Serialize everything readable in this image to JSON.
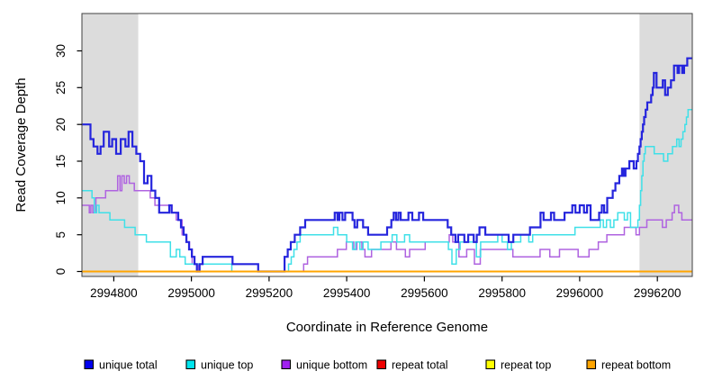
{
  "figure": {
    "type_hint": "R base graphics step plot of sequencing read coverage",
    "background": "#ffffff"
  },
  "chart_data": {
    "type": "line",
    "subtype": "step",
    "title": "",
    "xlabel": "Coordinate in Reference Genome",
    "ylabel": "Read Coverage Depth",
    "x_range": [
      2994718,
      2996290
    ],
    "y_range": [
      0,
      30
    ],
    "x_ticks": [
      2994800,
      2995000,
      2995200,
      2995400,
      2995600,
      2995800,
      2996000,
      2996200
    ],
    "y_ticks": [
      0,
      5,
      10,
      15,
      20,
      25,
      30
    ],
    "grid": false,
    "frame_color": "#404040",
    "shaded_bands": [
      {
        "name": "left-repeat-region",
        "x0": 2994718,
        "x1": 2994863,
        "color": "#dcdcdc"
      },
      {
        "name": "right-repeat-region",
        "x0": 2996154,
        "x1": 2996290,
        "color": "#dcdcdc"
      }
    ],
    "legend_position": "bottom",
    "legend": [
      {
        "label": "unique total",
        "fill": "#0000f0"
      },
      {
        "label": "unique top",
        "fill": "#00e5ee"
      },
      {
        "label": "unique bottom",
        "fill": "#a020f0"
      },
      {
        "label": "repeat total",
        "fill": "#ee0000"
      },
      {
        "label": "repeat top",
        "fill": "#ffff00"
      },
      {
        "label": "repeat bottom",
        "fill": "#ffa500"
      }
    ],
    "series": [
      {
        "name": "unique bottom",
        "color": "#af63e0",
        "width": 1.5,
        "steps": [
          [
            2994718,
            9
          ],
          [
            2994737,
            8
          ],
          [
            2994741,
            9
          ],
          [
            2994746,
            8
          ],
          [
            2994754,
            10
          ],
          [
            2994779,
            11
          ],
          [
            2994810,
            13
          ],
          [
            2994816,
            11
          ],
          [
            2994821,
            13
          ],
          [
            2994827,
            12
          ],
          [
            2994833,
            13
          ],
          [
            2994840,
            12
          ],
          [
            2994853,
            11
          ],
          [
            2994894,
            10
          ],
          [
            2994906,
            9
          ],
          [
            2994950,
            8
          ],
          [
            2994961,
            7
          ],
          [
            2994976,
            5
          ],
          [
            2994988,
            4
          ],
          [
            2994995,
            3
          ],
          [
            2995002,
            1
          ],
          [
            2995018,
            0
          ],
          [
            2995289,
            1
          ],
          [
            2995299,
            2
          ],
          [
            2995376,
            3
          ],
          [
            2995399,
            4
          ],
          [
            2995418,
            3
          ],
          [
            2995426,
            4
          ],
          [
            2995439,
            3
          ],
          [
            2995447,
            2
          ],
          [
            2995464,
            3
          ],
          [
            2995514,
            4
          ],
          [
            2995528,
            3
          ],
          [
            2995551,
            2
          ],
          [
            2995562,
            3
          ],
          [
            2995602,
            4
          ],
          [
            2995664,
            5
          ],
          [
            2995673,
            4
          ],
          [
            2995689,
            2
          ],
          [
            2995709,
            3
          ],
          [
            2995729,
            1
          ],
          [
            2995744,
            3
          ],
          [
            2995828,
            2
          ],
          [
            2995898,
            3
          ],
          [
            2995923,
            2
          ],
          [
            2995948,
            3
          ],
          [
            2995996,
            2
          ],
          [
            2996024,
            3
          ],
          [
            2996048,
            4
          ],
          [
            2996070,
            5
          ],
          [
            2996115,
            6
          ],
          [
            2996145,
            5
          ],
          [
            2996154,
            6
          ],
          [
            2996173,
            7
          ],
          [
            2996213,
            6
          ],
          [
            2996223,
            7
          ],
          [
            2996238,
            8
          ],
          [
            2996244,
            9
          ],
          [
            2996255,
            8
          ],
          [
            2996263,
            7
          ]
        ]
      },
      {
        "name": "unique top",
        "color": "#3fe0e8",
        "width": 1.5,
        "steps": [
          [
            2994718,
            11
          ],
          [
            2994744,
            10
          ],
          [
            2994750,
            8
          ],
          [
            2994756,
            9
          ],
          [
            2994762,
            8
          ],
          [
            2994790,
            7
          ],
          [
            2994828,
            6
          ],
          [
            2994855,
            5
          ],
          [
            2994884,
            4
          ],
          [
            2994946,
            2
          ],
          [
            2994961,
            3
          ],
          [
            2994970,
            2
          ],
          [
            2994984,
            1
          ],
          [
            2995104,
            0
          ],
          [
            2995250,
            1
          ],
          [
            2995257,
            2
          ],
          [
            2995264,
            3
          ],
          [
            2995272,
            4
          ],
          [
            2995280,
            5
          ],
          [
            2995366,
            6
          ],
          [
            2995377,
            5
          ],
          [
            2995400,
            4
          ],
          [
            2995415,
            3
          ],
          [
            2995423,
            4
          ],
          [
            2995434,
            3
          ],
          [
            2995442,
            4
          ],
          [
            2995455,
            3
          ],
          [
            2995488,
            4
          ],
          [
            2995517,
            5
          ],
          [
            2995529,
            4
          ],
          [
            2995549,
            5
          ],
          [
            2995562,
            4
          ],
          [
            2995662,
            3
          ],
          [
            2995671,
            1
          ],
          [
            2995682,
            3
          ],
          [
            2995692,
            4
          ],
          [
            2995734,
            2
          ],
          [
            2995745,
            4
          ],
          [
            2995789,
            5
          ],
          [
            2995800,
            4
          ],
          [
            2995814,
            3
          ],
          [
            2995824,
            4
          ],
          [
            2995848,
            5
          ],
          [
            2995869,
            4
          ],
          [
            2995879,
            5
          ],
          [
            2995988,
            6
          ],
          [
            2996053,
            7
          ],
          [
            2996061,
            6
          ],
          [
            2996069,
            7
          ],
          [
            2996079,
            6
          ],
          [
            2996088,
            7
          ],
          [
            2996098,
            8
          ],
          [
            2996115,
            7
          ],
          [
            2996123,
            8
          ],
          [
            2996131,
            6
          ],
          [
            2996150,
            7
          ],
          [
            2996154,
            9
          ],
          [
            2996157,
            11
          ],
          [
            2996160,
            13
          ],
          [
            2996163,
            15
          ],
          [
            2996166,
            16
          ],
          [
            2996169,
            17
          ],
          [
            2996192,
            16
          ],
          [
            2996216,
            15
          ],
          [
            2996227,
            16
          ],
          [
            2996239,
            17
          ],
          [
            2996250,
            18
          ],
          [
            2996256,
            17
          ],
          [
            2996261,
            18
          ],
          [
            2996266,
            19
          ],
          [
            2996271,
            20
          ],
          [
            2996275,
            21
          ],
          [
            2996279,
            22
          ]
        ]
      },
      {
        "name": "unique total",
        "color": "#2525dd",
        "width": 2.2,
        "steps": [
          [
            2994718,
            20
          ],
          [
            2994740,
            18
          ],
          [
            2994748,
            17
          ],
          [
            2994758,
            16
          ],
          [
            2994766,
            17
          ],
          [
            2994774,
            19
          ],
          [
            2994788,
            17
          ],
          [
            2994796,
            18
          ],
          [
            2994806,
            16
          ],
          [
            2994818,
            18
          ],
          [
            2994830,
            17
          ],
          [
            2994838,
            19
          ],
          [
            2994848,
            17
          ],
          [
            2994858,
            16
          ],
          [
            2994868,
            15
          ],
          [
            2994878,
            12
          ],
          [
            2994887,
            13
          ],
          [
            2994897,
            11
          ],
          [
            2994907,
            10
          ],
          [
            2994917,
            8
          ],
          [
            2994943,
            9
          ],
          [
            2994949,
            8
          ],
          [
            2994966,
            7
          ],
          [
            2994973,
            6
          ],
          [
            2994980,
            5
          ],
          [
            2994987,
            4
          ],
          [
            2994994,
            3
          ],
          [
            2995001,
            2
          ],
          [
            2995008,
            1
          ],
          [
            2995014,
            0
          ],
          [
            2995021,
            1
          ],
          [
            2995029,
            2
          ],
          [
            2995106,
            1
          ],
          [
            2995172,
            0
          ],
          [
            2995240,
            2
          ],
          [
            2995248,
            3
          ],
          [
            2995256,
            4
          ],
          [
            2995266,
            5
          ],
          [
            2995280,
            6
          ],
          [
            2995293,
            7
          ],
          [
            2995369,
            8
          ],
          [
            2995376,
            7
          ],
          [
            2995381,
            8
          ],
          [
            2995389,
            7
          ],
          [
            2995396,
            8
          ],
          [
            2995415,
            7
          ],
          [
            2995420,
            6
          ],
          [
            2995427,
            7
          ],
          [
            2995442,
            6
          ],
          [
            2995455,
            5
          ],
          [
            2995504,
            6
          ],
          [
            2995515,
            7
          ],
          [
            2995521,
            8
          ],
          [
            2995527,
            7
          ],
          [
            2995533,
            8
          ],
          [
            2995539,
            7
          ],
          [
            2995559,
            8
          ],
          [
            2995569,
            7
          ],
          [
            2995586,
            8
          ],
          [
            2995597,
            7
          ],
          [
            2995660,
            6
          ],
          [
            2995669,
            5
          ],
          [
            2995680,
            4
          ],
          [
            2995687,
            5
          ],
          [
            2995703,
            4
          ],
          [
            2995713,
            5
          ],
          [
            2995727,
            4
          ],
          [
            2995735,
            5
          ],
          [
            2995742,
            6
          ],
          [
            2995757,
            5
          ],
          [
            2995817,
            4
          ],
          [
            2995829,
            5
          ],
          [
            2995872,
            6
          ],
          [
            2995899,
            8
          ],
          [
            2995907,
            7
          ],
          [
            2995926,
            8
          ],
          [
            2995934,
            7
          ],
          [
            2995961,
            8
          ],
          [
            2995981,
            9
          ],
          [
            2995989,
            8
          ],
          [
            2996000,
            9
          ],
          [
            2996011,
            8
          ],
          [
            2996019,
            9
          ],
          [
            2996028,
            7
          ],
          [
            2996050,
            8
          ],
          [
            2996057,
            9
          ],
          [
            2996063,
            8
          ],
          [
            2996071,
            10
          ],
          [
            2996085,
            11
          ],
          [
            2996092,
            12
          ],
          [
            2996102,
            13
          ],
          [
            2996109,
            14
          ],
          [
            2996114,
            13
          ],
          [
            2996118,
            14
          ],
          [
            2996128,
            15
          ],
          [
            2996139,
            14
          ],
          [
            2996146,
            15
          ],
          [
            2996150,
            16
          ],
          [
            2996154,
            17
          ],
          [
            2996157,
            18
          ],
          [
            2996160,
            19
          ],
          [
            2996163,
            20
          ],
          [
            2996166,
            21
          ],
          [
            2996170,
            22
          ],
          [
            2996174,
            23
          ],
          [
            2996184,
            24
          ],
          [
            2996188,
            25
          ],
          [
            2996191,
            27
          ],
          [
            2996198,
            25
          ],
          [
            2996214,
            26
          ],
          [
            2996220,
            24
          ],
          [
            2996227,
            25
          ],
          [
            2996235,
            26
          ],
          [
            2996243,
            28
          ],
          [
            2996252,
            27
          ],
          [
            2996256,
            28
          ],
          [
            2996264,
            27
          ],
          [
            2996269,
            28
          ],
          [
            2996277,
            29
          ]
        ]
      },
      {
        "name": "repeat total",
        "color": "#ee0000",
        "width": 1.4,
        "steps": [
          [
            2994718,
            0
          ]
        ]
      },
      {
        "name": "repeat top",
        "color": "#ffff00",
        "width": 1.4,
        "steps": [
          [
            2994718,
            0
          ]
        ]
      },
      {
        "name": "repeat bottom",
        "color": "#ffa500",
        "width": 2,
        "steps": [
          [
            2994718,
            0
          ]
        ]
      }
    ]
  }
}
